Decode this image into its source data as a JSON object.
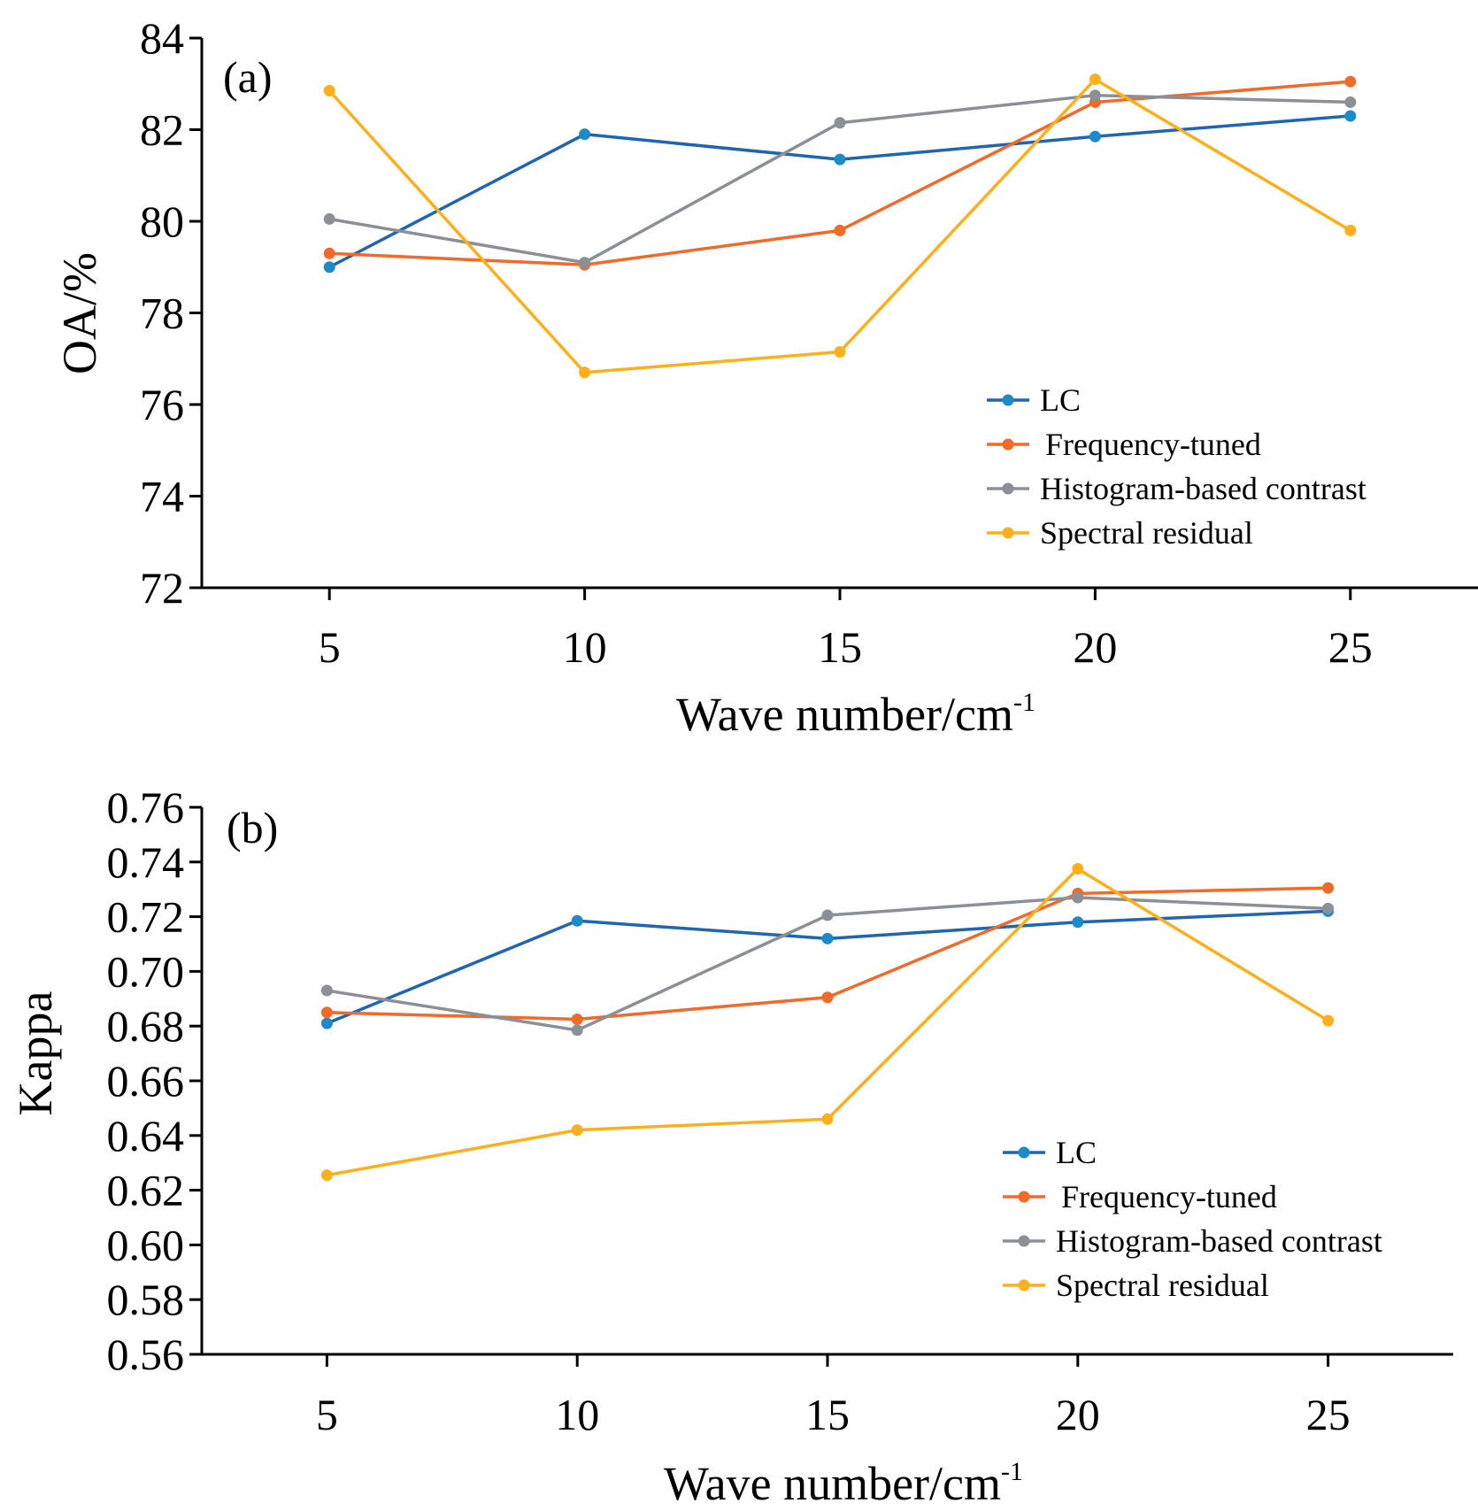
{
  "chart_data": [
    {
      "type": "line",
      "panel_label": "(a)",
      "xlabel": "Wave number/cm",
      "xlabel_sup": "-1",
      "ylabel": "OA/%",
      "x": [
        5,
        10,
        15,
        20,
        25
      ],
      "xlim": [
        2.5,
        27.5
      ],
      "xticks": [
        "5",
        "10",
        "15",
        "20",
        "25"
      ],
      "ylim": [
        72,
        84
      ],
      "yticks": [
        "72",
        "74",
        "76",
        "78",
        "80",
        "82",
        "84"
      ],
      "grid": false,
      "legend_position": "bottom-right",
      "series": [
        {
          "name": "LC",
          "color": "#1f65b0",
          "marker_color": "#1f8ac8",
          "values": [
            79.0,
            81.9,
            81.35,
            81.85,
            82.3
          ]
        },
        {
          "name": "Frequency-tuned",
          "color": "#f06a2a",
          "marker_color": "#f06a2a",
          "values": [
            79.3,
            79.05,
            79.8,
            82.6,
            83.05
          ]
        },
        {
          "name": "Histogram-based contrast",
          "color": "#8a9096",
          "marker_color": "#8a9096",
          "values": [
            80.05,
            79.1,
            82.15,
            82.75,
            82.6
          ]
        },
        {
          "name": "Spectral residual",
          "color": "#fdb01c",
          "marker_color": "#fdb01c",
          "values": [
            82.85,
            76.7,
            77.15,
            83.1,
            79.8
          ]
        }
      ]
    },
    {
      "type": "line",
      "panel_label": "(b)",
      "xlabel": "Wave number/cm",
      "xlabel_sup": "-1",
      "ylabel": "Kappa",
      "x": [
        5,
        10,
        15,
        20,
        25
      ],
      "xlim": [
        2.5,
        27.5
      ],
      "xticks": [
        "5",
        "10",
        "15",
        "20",
        "25"
      ],
      "ylim": [
        0.56,
        0.76
      ],
      "yticks": [
        "0.56",
        "0.58",
        "0.60",
        "0.62",
        "0.64",
        "0.66",
        "0.68",
        "0.70",
        "0.72",
        "0.74",
        "0.76"
      ],
      "grid": false,
      "legend_position": "bottom-right",
      "series": [
        {
          "name": "LC",
          "color": "#1f65b0",
          "marker_color": "#1f8ac8",
          "values": [
            0.681,
            0.7185,
            0.712,
            0.718,
            0.722
          ]
        },
        {
          "name": "Frequency-tuned",
          "color": "#f06a2a",
          "marker_color": "#f06a2a",
          "values": [
            0.685,
            0.6825,
            0.6905,
            0.7285,
            0.7305
          ]
        },
        {
          "name": "Histogram-based contrast",
          "color": "#8a9096",
          "marker_color": "#8a9096",
          "values": [
            0.693,
            0.6785,
            0.7205,
            0.727,
            0.723
          ]
        },
        {
          "name": "Spectral residual",
          "color": "#fdb01c",
          "marker_color": "#fdb01c",
          "values": [
            0.6255,
            0.642,
            0.646,
            0.7375,
            0.682
          ]
        }
      ]
    }
  ]
}
